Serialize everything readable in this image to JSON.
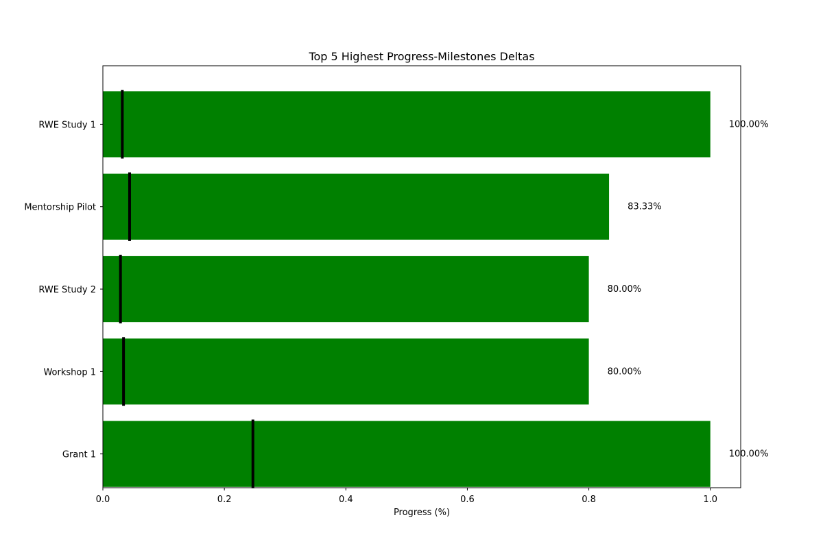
{
  "chart_data": {
    "type": "bar",
    "orientation": "horizontal",
    "title": "Top 5 Highest Progress-Milestones Deltas",
    "xlabel": "Progress (%)",
    "ylabel": "",
    "xlim": [
      0,
      1.05
    ],
    "xticks": [
      0.0,
      0.2,
      0.4,
      0.6,
      0.8,
      1.0
    ],
    "xtick_labels": [
      "0.0",
      "0.2",
      "0.4",
      "0.6",
      "0.8",
      "1.0"
    ],
    "grid": false,
    "legend": "none",
    "bar_color": "#008000",
    "marker_color": "#000000",
    "categories": [
      "RWE Study 1",
      "Mentorship Pilot",
      "RWE Study 2",
      "Workshop 1",
      "Grant 1"
    ],
    "values": [
      1.0,
      0.8333,
      0.8,
      0.8,
      1.0
    ],
    "value_labels": [
      "100.00%",
      "83.33%",
      "80.00%",
      "80.00%",
      "100.00%"
    ],
    "markers": [
      0.032,
      0.044,
      0.029,
      0.034,
      0.247
    ]
  }
}
